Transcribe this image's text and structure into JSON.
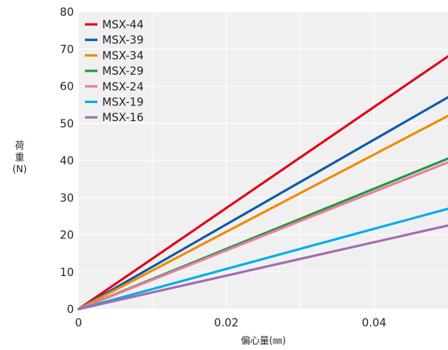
{
  "chart_data": {
    "type": "line",
    "title": "",
    "xlabel": "偏心量(㎜)",
    "ylabel_lines": [
      "荷",
      "重",
      "(N)"
    ],
    "xlim": [
      0,
      0.05
    ],
    "ylim": [
      0,
      80
    ],
    "x_ticks": [
      0,
      0.02,
      0.04
    ],
    "x_tick_labels": [
      "0",
      "0.02",
      "0.04"
    ],
    "y_ticks": [
      0,
      10,
      20,
      30,
      40,
      50,
      60,
      70,
      80
    ],
    "y_tick_labels": [
      "0",
      "10",
      "20",
      "30",
      "40",
      "50",
      "60",
      "70",
      "80"
    ],
    "grid": true,
    "legend_position": "top-left",
    "series": [
      {
        "name": "MSX-44",
        "color": "#e3001b",
        "x": [
          0,
          0.05
        ],
        "y": [
          0,
          68
        ]
      },
      {
        "name": "MSX-39",
        "color": "#0e5aa7",
        "x": [
          0,
          0.05
        ],
        "y": [
          0,
          57
        ]
      },
      {
        "name": "MSX-34",
        "color": "#f08a00",
        "x": [
          0,
          0.05
        ],
        "y": [
          0,
          52
        ]
      },
      {
        "name": "MSX-29",
        "color": "#1f9a3b",
        "x": [
          0,
          0.05
        ],
        "y": [
          0,
          40.5
        ]
      },
      {
        "name": "MSX-24",
        "color": "#ec7ba1",
        "x": [
          0,
          0.05
        ],
        "y": [
          0,
          39.5
        ]
      },
      {
        "name": "MSX-19",
        "color": "#00aee6",
        "x": [
          0,
          0.05
        ],
        "y": [
          0,
          27
        ]
      },
      {
        "name": "MSX-16",
        "color": "#a46bb0",
        "x": [
          0,
          0.05
        ],
        "y": [
          0,
          22.5
        ]
      }
    ]
  }
}
